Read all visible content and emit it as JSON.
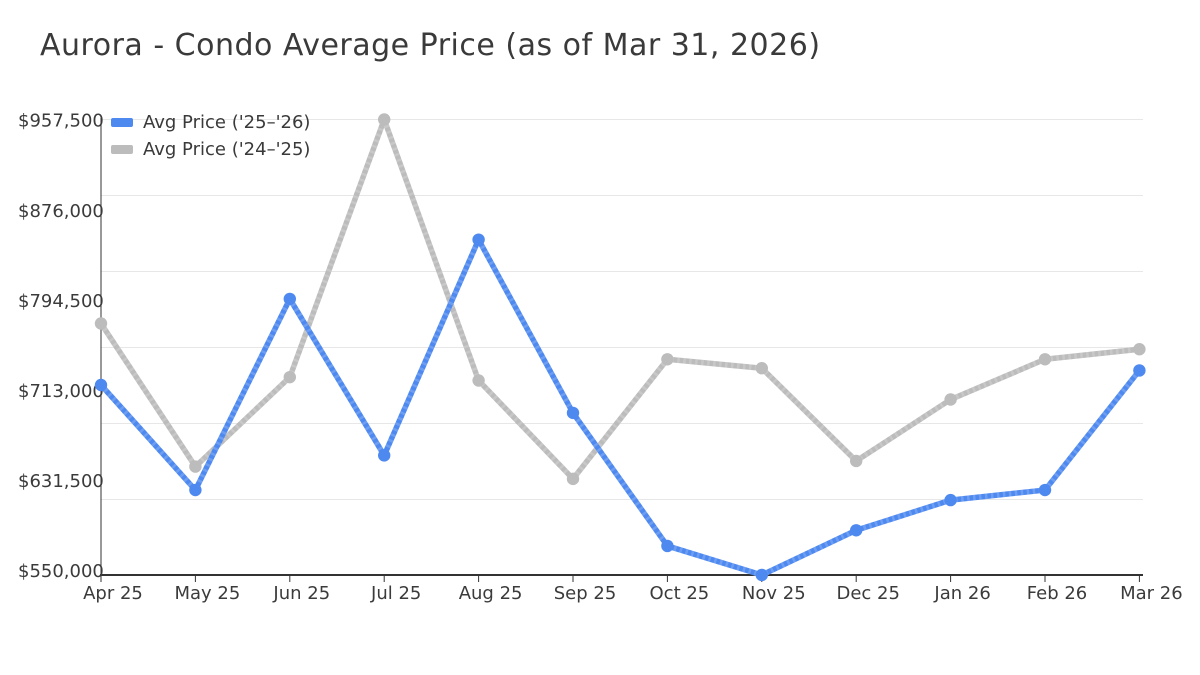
{
  "header": {
    "title": "Aurora - Condo Average Price (as of Mar 31, 2026)"
  },
  "legend": {
    "items": [
      {
        "label": "Avg Price ('25–'26)",
        "color": "#4e89f0"
      },
      {
        "label": "Avg Price ('24–'25)",
        "color": "#bcbcbc"
      }
    ]
  },
  "chart_data": {
    "type": "line",
    "title": "Aurora - Condo Average Price (as of Mar 31, 2026)",
    "categories": [
      "Apr 25",
      "May 25",
      "Jun 25",
      "Jul 25",
      "Aug 25",
      "Sep 25",
      "Oct 25",
      "Nov 25",
      "Dec 25",
      "Jan 26",
      "Feb 26",
      "Mar 26"
    ],
    "series": [
      {
        "name": "Avg Price ('25–'26)",
        "color": "#4e89f0",
        "values": [
          720000,
          626000,
          797000,
          657000,
          850000,
          695000,
          576000,
          550000,
          590000,
          617000,
          626000,
          733000
        ]
      },
      {
        "name": "Avg Price ('24–'25)",
        "color": "#bcbcbc",
        "values": [
          775000,
          647000,
          727000,
          957500,
          724000,
          636000,
          743000,
          735000,
          652000,
          707000,
          743000,
          752000
        ]
      }
    ],
    "y_tick_labels_top_to_bottom": [
      "$957,500",
      "$876,000",
      "$794,500",
      "$713,000",
      "$631,500",
      "$550,000"
    ],
    "ylim": [
      550000,
      957500
    ],
    "xlabel": "",
    "ylabel": "",
    "grid": true,
    "legend_position": "top-left"
  },
  "colors": {
    "title_text": "#3a3a3a",
    "tick_text": "#3b3b3b",
    "axis": "#333333",
    "gridline": "#e7e7e7",
    "background": "#ffffff"
  }
}
